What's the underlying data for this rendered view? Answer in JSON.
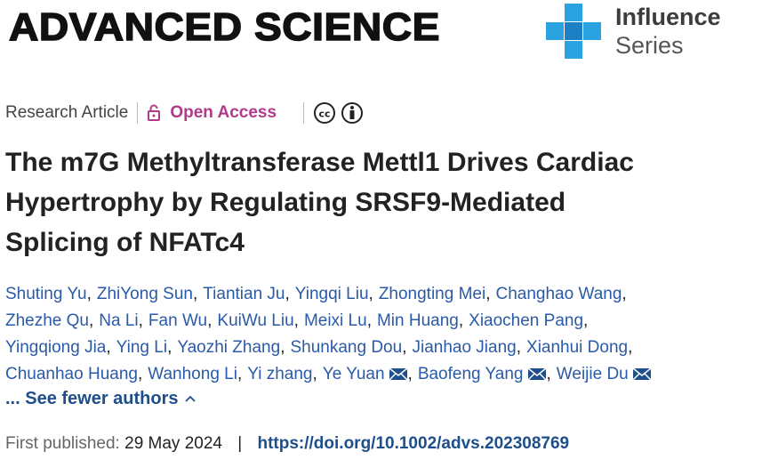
{
  "header": {
    "journal": "ADVANCED SCIENCE",
    "series_top": "Influence",
    "series_bottom": "Series"
  },
  "meta": {
    "article_type": "Research Article",
    "access": "Open Access"
  },
  "title_lines": [
    "The m7G Methyltransferase Mettl1 Drives Cardiac",
    "Hypertrophy by Regulating SRSF9-Mediated",
    "Splicing of NFATc4"
  ],
  "author_separator": ",",
  "author_lines": [
    [
      {
        "name": "Shuting Yu"
      },
      {
        "name": "ZhiYong Sun"
      },
      {
        "name": "Tiantian Ju"
      },
      {
        "name": "Yingqi Liu"
      },
      {
        "name": "Zhongting Mei"
      },
      {
        "name": "Changhao Wang"
      }
    ],
    [
      {
        "name": "Zhezhe Qu"
      },
      {
        "name": "Na Li"
      },
      {
        "name": "Fan Wu"
      },
      {
        "name": "KuiWu Liu"
      },
      {
        "name": "Meixi Lu"
      },
      {
        "name": "Min Huang"
      },
      {
        "name": "Xiaochen Pang"
      }
    ],
    [
      {
        "name": "Yingqiong Jia"
      },
      {
        "name": "Ying Li"
      },
      {
        "name": "Yaozhi Zhang"
      },
      {
        "name": "Shunkang Dou"
      },
      {
        "name": "Jianhao Jiang"
      },
      {
        "name": "Xianhui Dong"
      }
    ],
    [
      {
        "name": "Chuanhao Huang"
      },
      {
        "name": "Wanhong Li"
      },
      {
        "name": "Yi zhang"
      },
      {
        "name": "Ye Yuan",
        "email": true
      },
      {
        "name": "Baofeng Yang",
        "email": true
      },
      {
        "name": "Weijie Du",
        "email": true
      }
    ]
  ],
  "toggle": "... See fewer authors",
  "published": {
    "label": "First published:",
    "date": "29 May 2024",
    "separator": "|",
    "doi": "https://doi.org/10.1002/advs.202308769"
  }
}
